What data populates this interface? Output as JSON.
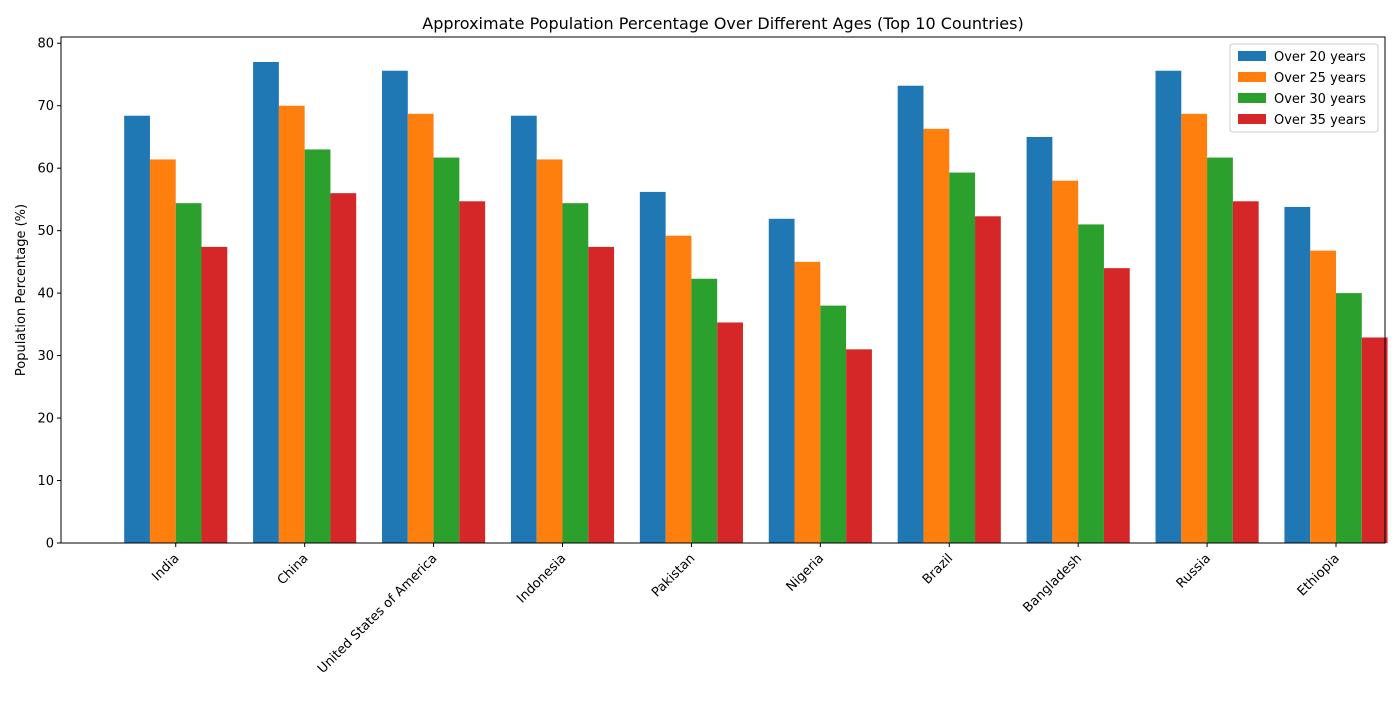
{
  "chart_data": {
    "type": "bar",
    "title": "Approximate Population Percentage Over Different Ages (Top 10 Countries)",
    "xlabel": "",
    "ylabel": "Population Percentage (%)",
    "ylim": [
      0,
      81
    ],
    "yticks": [
      0,
      10,
      20,
      30,
      40,
      50,
      60,
      70,
      80
    ],
    "grid": false,
    "legend_position": "top-right",
    "categories": [
      "India",
      "China",
      "United States of America",
      "Indonesia",
      "Pakistan",
      "Nigeria",
      "Brazil",
      "Bangladesh",
      "Russia",
      "Ethiopia"
    ],
    "series": [
      {
        "name": "Over 20 years",
        "color": "#1f77b4",
        "values": [
          68.4,
          77.0,
          75.6,
          68.4,
          56.2,
          51.9,
          73.2,
          65.0,
          75.6,
          53.8
        ]
      },
      {
        "name": "Over 25 years",
        "color": "#ff7f0e",
        "values": [
          61.4,
          70.0,
          68.7,
          61.4,
          49.2,
          45.0,
          66.3,
          58.0,
          68.7,
          46.8
        ]
      },
      {
        "name": "Over 30 years",
        "color": "#2ca02c",
        "values": [
          54.4,
          63.0,
          61.7,
          54.4,
          42.3,
          38.0,
          59.3,
          51.0,
          61.7,
          40.0
        ]
      },
      {
        "name": "Over 35 years",
        "color": "#d62728",
        "values": [
          47.4,
          56.0,
          54.7,
          47.4,
          35.3,
          31.0,
          52.3,
          44.0,
          54.7,
          32.9
        ]
      }
    ]
  }
}
